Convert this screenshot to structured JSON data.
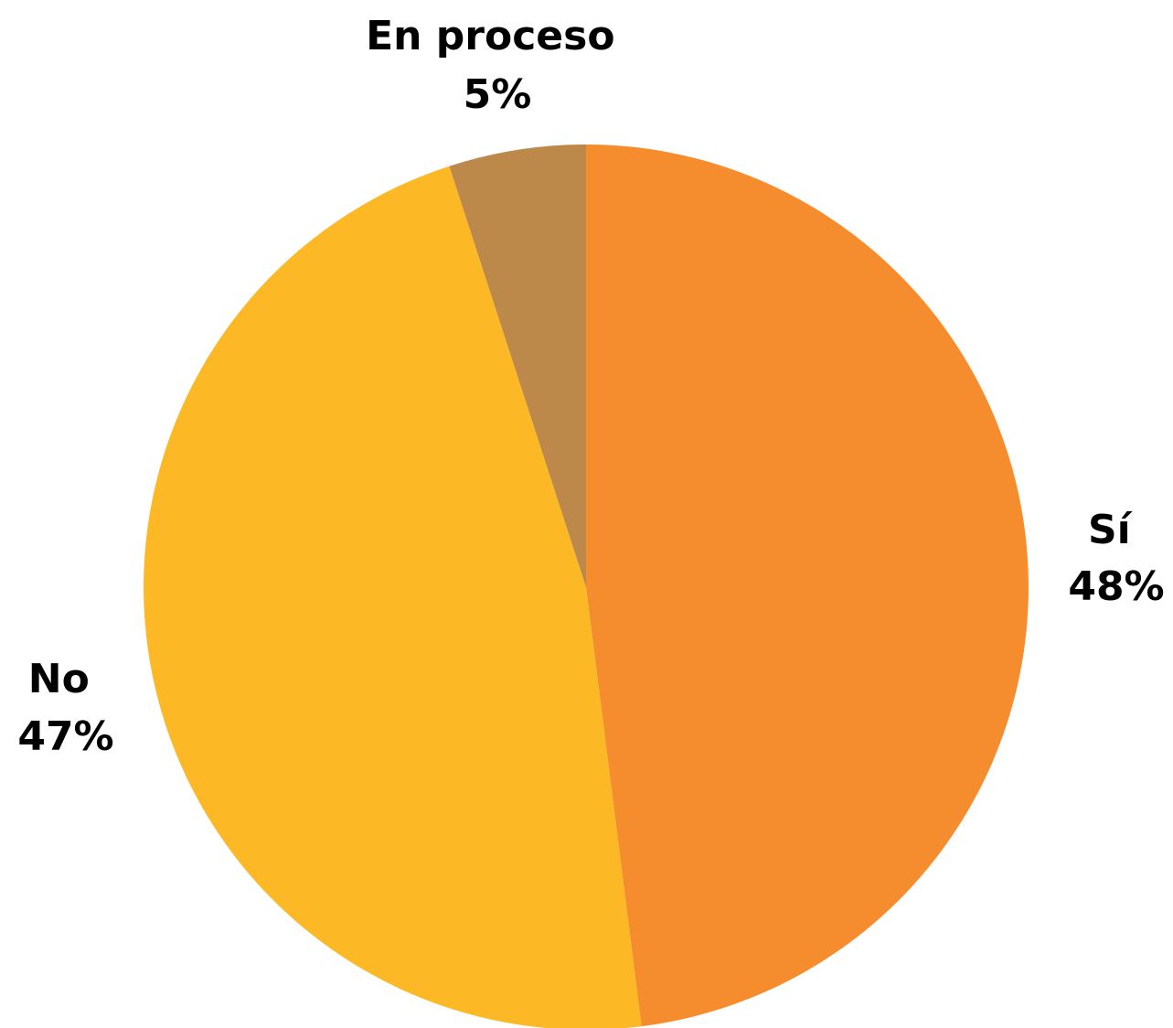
{
  "chart_data": {
    "type": "pie",
    "start_angle": "12 o'clock",
    "direction": "clockwise",
    "legend": "none",
    "slices": [
      {
        "label": "Sí",
        "value": 48,
        "value_label": "48%",
        "color": "#F58D2E"
      },
      {
        "label": "No",
        "value": 47,
        "value_label": "47%",
        "color": "#FDB825"
      },
      {
        "label": "En proceso",
        "value": 5,
        "value_label": "5%",
        "color": "#BD894A"
      }
    ]
  }
}
